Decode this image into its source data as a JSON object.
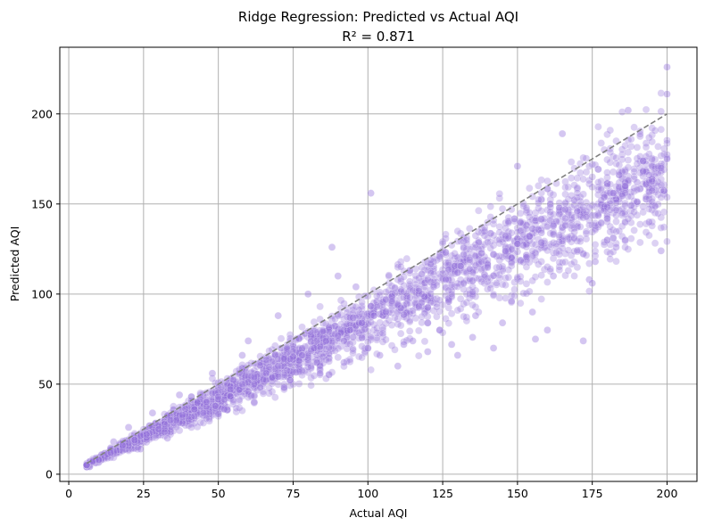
{
  "chart_data": {
    "type": "scatter",
    "title": "Ridge Regression: Predicted vs Actual AQI",
    "subtitle": "R² = 0.871",
    "xlabel": "Actual AQI",
    "ylabel": "Predicted AQI",
    "xlim": [
      -3,
      210
    ],
    "ylim": [
      -4,
      237
    ],
    "xticks": [
      0,
      25,
      50,
      75,
      100,
      125,
      150,
      175,
      200
    ],
    "yticks": [
      0,
      50,
      100,
      150,
      200
    ],
    "grid": true,
    "colors": {
      "points": "#9370DB",
      "reference_line": "#808080",
      "grid": "#b0b0b0"
    },
    "reference_line": {
      "style": "dashed",
      "from": [
        6,
        6
      ],
      "to": [
        200,
        200
      ]
    },
    "point_cloud": {
      "description_of_trend": "predicted ≈ 0.85·actual with spread widening as AQI increases",
      "slope": 0.85,
      "intercept": 0,
      "spread_ratio": 0.17
    },
    "points": [
      [
        6,
        5
      ],
      [
        10,
        8
      ],
      [
        14,
        12
      ],
      [
        18,
        16
      ],
      [
        22,
        19
      ],
      [
        26,
        22
      ],
      [
        30,
        25
      ],
      [
        34,
        30
      ],
      [
        38,
        33
      ],
      [
        42,
        36
      ],
      [
        46,
        40
      ],
      [
        50,
        43
      ],
      [
        54,
        47
      ],
      [
        58,
        50
      ],
      [
        62,
        54
      ],
      [
        66,
        56
      ],
      [
        70,
        60
      ],
      [
        74,
        64
      ],
      [
        78,
        66
      ],
      [
        82,
        70
      ],
      [
        86,
        74
      ],
      [
        90,
        77
      ],
      [
        94,
        80
      ],
      [
        98,
        84
      ],
      [
        102,
        88
      ],
      [
        106,
        90
      ],
      [
        110,
        94
      ],
      [
        114,
        98
      ],
      [
        118,
        100
      ],
      [
        122,
        104
      ],
      [
        126,
        108
      ],
      [
        130,
        112
      ],
      [
        134,
        114
      ],
      [
        138,
        118
      ],
      [
        142,
        122
      ],
      [
        146,
        124
      ],
      [
        150,
        128
      ],
      [
        154,
        132
      ],
      [
        158,
        134
      ],
      [
        162,
        138
      ],
      [
        166,
        142
      ],
      [
        170,
        146
      ],
      [
        174,
        148
      ],
      [
        178,
        152
      ],
      [
        182,
        156
      ],
      [
        186,
        160
      ],
      [
        190,
        162
      ],
      [
        194,
        166
      ],
      [
        198,
        170
      ],
      [
        200,
        175
      ],
      [
        101,
        156
      ],
      [
        200,
        226
      ],
      [
        200,
        211
      ],
      [
        187,
        202
      ],
      [
        165,
        189
      ],
      [
        150,
        171
      ],
      [
        88,
        126
      ],
      [
        172,
        74
      ],
      [
        160,
        80
      ],
      [
        130,
        66
      ],
      [
        120,
        84
      ],
      [
        142,
        70
      ],
      [
        155,
        90
      ],
      [
        156,
        75
      ],
      [
        174,
        108
      ],
      [
        183,
        126
      ],
      [
        198,
        124
      ],
      [
        175,
        106
      ],
      [
        145,
        84
      ],
      [
        135,
        76
      ],
      [
        128,
        72
      ],
      [
        115,
        74
      ],
      [
        108,
        96
      ],
      [
        96,
        104
      ],
      [
        90,
        110
      ],
      [
        80,
        100
      ],
      [
        70,
        88
      ],
      [
        60,
        74
      ],
      [
        58,
        66
      ],
      [
        48,
        56
      ],
      [
        45,
        34
      ],
      [
        52,
        36
      ],
      [
        62,
        40
      ],
      [
        72,
        48
      ],
      [
        84,
        56
      ],
      [
        92,
        62
      ],
      [
        104,
        66
      ],
      [
        112,
        72
      ],
      [
        124,
        80
      ],
      [
        136,
        88
      ],
      [
        148,
        96
      ],
      [
        162,
        110
      ],
      [
        176,
        118
      ],
      [
        186,
        130
      ],
      [
        194,
        140
      ],
      [
        100,
        70
      ],
      [
        110,
        60
      ],
      [
        120,
        68
      ],
      [
        37,
        44
      ],
      [
        28,
        34
      ],
      [
        20,
        26
      ],
      [
        15,
        18
      ],
      [
        24,
        14
      ],
      [
        33,
        20
      ]
    ]
  }
}
